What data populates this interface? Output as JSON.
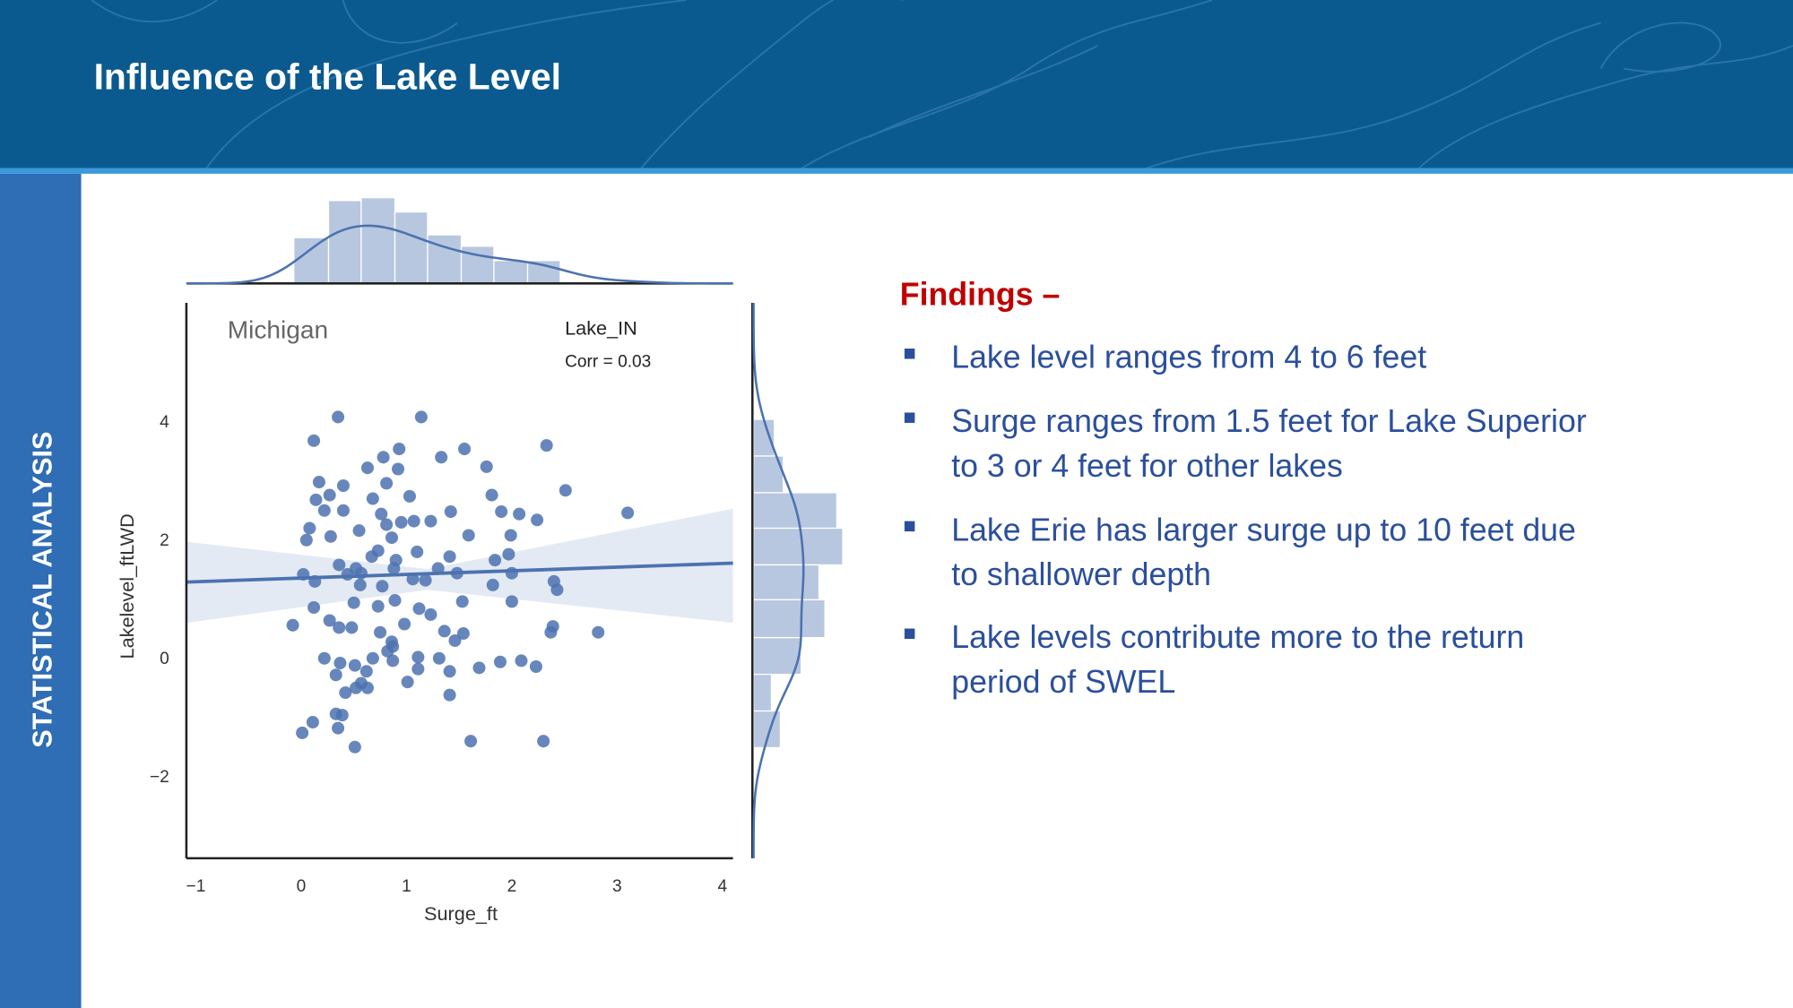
{
  "header": {
    "title": "Influence of the Lake Level"
  },
  "sidebar": {
    "label": "STATISTICAL ANALYSIS"
  },
  "findings": {
    "heading": "Findings –",
    "bullets": [
      {
        "lines": [
          "Lake level ranges from 4 to 6 feet"
        ]
      },
      {
        "lines": [
          "Surge ranges from 1.5 feet for Lake Superior",
          "to 3 or 4 feet for other lakes"
        ]
      },
      {
        "lines": [
          "Lake Erie has larger surge up to 10 feet due",
          "to shallower depth"
        ]
      },
      {
        "lines": [
          "Lake levels contribute more to the return",
          "period of SWEL"
        ]
      }
    ]
  },
  "chart_data": {
    "type": "scatter",
    "panel_label": "Michigan",
    "legend_title": "Lake_IN",
    "annotation": "Corr = 0.03",
    "x_label": "Surge_ft",
    "y_label": "Lakelevel_ftLWD",
    "color": "#4c72b0",
    "xlim": [
      -1.09,
      4.1
    ],
    "ylim": [
      -3.38,
      6.01
    ],
    "xticks": [
      {
        "value": -1,
        "label": "−1"
      },
      0,
      1,
      2,
      3,
      4
    ],
    "yticks": [
      {
        "value": -2,
        "label": "−2"
      },
      0,
      2,
      4
    ],
    "x": [
      0.35,
      0.12,
      1.14,
      2.33,
      1.55,
      1.33,
      0.93,
      0.78,
      1.76,
      0.63,
      0.92,
      0.17,
      0.4,
      0.81,
      2.51,
      0.27,
      0.14,
      0.68,
      1.03,
      1.81,
      0.22,
      0.76,
      1.42,
      1.9,
      2.07,
      3.1,
      0.4,
      0.08,
      0.55,
      0.81,
      0.95,
      1.07,
      1.23,
      1.59,
      1.99,
      2.24,
      0.28,
      0.05,
      0.86,
      0.73,
      0.36,
      0.52,
      0.67,
      0.9,
      1.1,
      1.41,
      1.84,
      1.97,
      0.02,
      0.44,
      0.57,
      0.88,
      1.3,
      1.48,
      2.0,
      2.4,
      0.13,
      0.56,
      0.77,
      1.06,
      1.18,
      1.82,
      2.43,
      0.12,
      0.5,
      0.73,
      0.89,
      1.12,
      1.23,
      1.53,
      2.0,
      -0.08,
      0.27,
      0.36,
      0.48,
      0.75,
      0.98,
      0.86,
      1.36,
      1.54,
      2.39,
      2.37,
      2.82,
      0.82,
      0.87,
      1.46,
      0.22,
      0.68,
      0.37,
      0.51,
      0.87,
      1.11,
      1.31,
      0.33,
      0.62,
      1.11,
      1.41,
      1.69,
      1.89,
      2.09,
      2.23,
      0.57,
      0.52,
      1.01,
      0.63,
      1.41,
      0.42,
      0.33,
      0.39,
      0.11,
      0.35,
      0.01,
      1.61,
      2.3,
      0.51
    ],
    "values": [
      4.08,
      3.68,
      4.08,
      3.6,
      3.54,
      3.4,
      3.54,
      3.4,
      3.24,
      3.22,
      3.2,
      2.98,
      2.92,
      2.96,
      2.84,
      2.76,
      2.68,
      2.7,
      2.74,
      2.76,
      2.5,
      2.44,
      2.48,
      2.48,
      2.44,
      2.46,
      2.5,
      2.2,
      2.16,
      2.26,
      2.3,
      2.32,
      2.32,
      2.08,
      2.08,
      2.34,
      2.06,
      2.0,
      2.04,
      1.82,
      1.58,
      1.52,
      1.72,
      1.66,
      1.8,
      1.72,
      1.66,
      1.76,
      1.42,
      1.42,
      1.44,
      1.52,
      1.52,
      1.44,
      1.44,
      1.3,
      1.3,
      1.24,
      1.22,
      1.34,
      1.32,
      1.24,
      1.16,
      0.86,
      0.94,
      0.88,
      0.98,
      0.84,
      0.74,
      0.96,
      0.96,
      0.56,
      0.64,
      0.52,
      0.52,
      0.44,
      0.58,
      0.28,
      0.46,
      0.42,
      0.54,
      0.44,
      0.44,
      0.12,
      0.2,
      0.3,
      0,
      0,
      -0.08,
      -0.12,
      -0.04,
      0.02,
      0,
      -0.28,
      -0.22,
      -0.18,
      -0.22,
      -0.16,
      -0.06,
      -0.04,
      -0.14,
      -0.42,
      -0.5,
      -0.4,
      -0.5,
      -0.62,
      -0.58,
      -0.94,
      -0.96,
      -1.08,
      -1.18,
      -1.26,
      -1.4,
      -1.4,
      -1.5
    ],
    "regression": {
      "x": [
        -1.09,
        4.1
      ],
      "y": [
        1.29,
        1.61
      ]
    },
    "confidence_band": {
      "x": [
        -1.09,
        1.2,
        4.1
      ],
      "upper": [
        1.97,
        1.51,
        2.53
      ],
      "lower": [
        0.6,
        1.16,
        0.6
      ]
    },
    "x_hist": {
      "bins": [
        -0.07,
        0.26,
        0.57,
        0.89,
        1.2,
        1.52,
        1.83,
        2.15,
        2.46
      ],
      "counts": [
        16,
        29,
        30,
        25,
        17,
        13,
        8,
        8
      ]
    },
    "y_hist": {
      "bins": [
        4.04,
        3.42,
        2.8,
        2.2,
        1.58,
        0.99,
        0.35,
        -0.27,
        -0.89,
        -1.51
      ],
      "counts": [
        7,
        10,
        28,
        30,
        22,
        24,
        16,
        6,
        9
      ]
    }
  }
}
